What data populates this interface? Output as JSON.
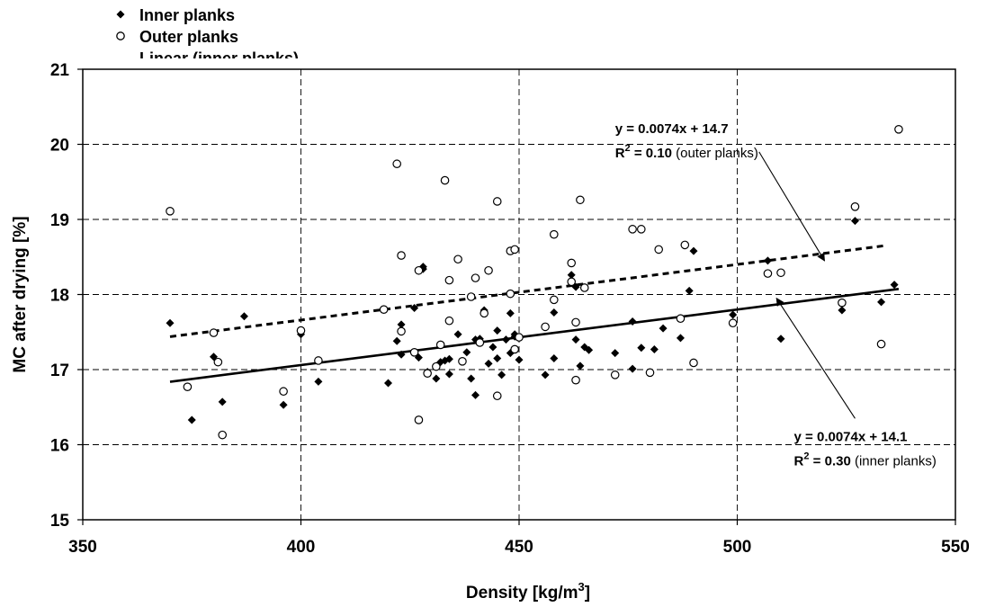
{
  "chart_data": {
    "type": "scatter",
    "title": "",
    "xlabel": {
      "text": "Density [kg/m",
      "sup": "3",
      "end": "]"
    },
    "ylabel": "MC after drying [%]",
    "xlim": [
      350,
      550
    ],
    "ylim": [
      15,
      21
    ],
    "xticks": [
      350,
      400,
      450,
      500,
      550
    ],
    "yticks": [
      15,
      16,
      17,
      18,
      19,
      20,
      21
    ],
    "grid": true,
    "legend_position": "top-left",
    "series": [
      {
        "name": "Inner planks",
        "marker": "diamond-filled",
        "points": [
          [
            370,
            17.62
          ],
          [
            375,
            16.33
          ],
          [
            380,
            17.17
          ],
          [
            382,
            16.57
          ],
          [
            387,
            17.71
          ],
          [
            396,
            16.53
          ],
          [
            400,
            17.47
          ],
          [
            404,
            16.84
          ],
          [
            420,
            16.82
          ],
          [
            422,
            17.38
          ],
          [
            423,
            17.2
          ],
          [
            423,
            17.6
          ],
          [
            426,
            17.82
          ],
          [
            427,
            17.16
          ],
          [
            428,
            18.37
          ],
          [
            428,
            18.34
          ],
          [
            429,
            16.97
          ],
          [
            431,
            16.88
          ],
          [
            432,
            17.1
          ],
          [
            433,
            17.12
          ],
          [
            434,
            16.94
          ],
          [
            434,
            17.14
          ],
          [
            436,
            17.47
          ],
          [
            438,
            17.23
          ],
          [
            439,
            16.88
          ],
          [
            440,
            17.4
          ],
          [
            440,
            16.66
          ],
          [
            441,
            17.41
          ],
          [
            442,
            17.79
          ],
          [
            443,
            17.08
          ],
          [
            444,
            17.3
          ],
          [
            445,
            17.52
          ],
          [
            445,
            17.15
          ],
          [
            446,
            16.93
          ],
          [
            447,
            17.4
          ],
          [
            448,
            17.75
          ],
          [
            448,
            17.22
          ],
          [
            449,
            17.47
          ],
          [
            449,
            17.44
          ],
          [
            450,
            17.13
          ],
          [
            456,
            16.93
          ],
          [
            458,
            17.76
          ],
          [
            458,
            17.15
          ],
          [
            462,
            18.26
          ],
          [
            463,
            18.1
          ],
          [
            463,
            17.4
          ],
          [
            464,
            17.05
          ],
          [
            465,
            17.3
          ],
          [
            466,
            17.26
          ],
          [
            472,
            17.22
          ],
          [
            476,
            17.64
          ],
          [
            476,
            17.01
          ],
          [
            478,
            17.29
          ],
          [
            481,
            17.27
          ],
          [
            483,
            17.55
          ],
          [
            487,
            17.42
          ],
          [
            489,
            18.05
          ],
          [
            490,
            18.58
          ],
          [
            499,
            17.73
          ],
          [
            507,
            18.45
          ],
          [
            510,
            17.41
          ],
          [
            524,
            17.79
          ],
          [
            527,
            18.98
          ],
          [
            533,
            17.9
          ],
          [
            536,
            18.13
          ]
        ],
        "trend": {
          "slope": 0.0074,
          "intercept": 14.1,
          "x_range": [
            370,
            537
          ],
          "style": "solid"
        }
      },
      {
        "name": "Outer planks",
        "marker": "circle-open",
        "points": [
          [
            370,
            19.11
          ],
          [
            374,
            16.77
          ],
          [
            380,
            17.49
          ],
          [
            381,
            17.1
          ],
          [
            382,
            16.13
          ],
          [
            396,
            16.71
          ],
          [
            400,
            17.52
          ],
          [
            404,
            17.12
          ],
          [
            419,
            17.8
          ],
          [
            422,
            19.74
          ],
          [
            423,
            18.52
          ],
          [
            423,
            17.51
          ],
          [
            426,
            17.23
          ],
          [
            427,
            18.32
          ],
          [
            427,
            16.33
          ],
          [
            429,
            16.95
          ],
          [
            431,
            17.04
          ],
          [
            432,
            17.33
          ],
          [
            433,
            19.52
          ],
          [
            434,
            17.65
          ],
          [
            434,
            18.19
          ],
          [
            436,
            18.47
          ],
          [
            437,
            17.11
          ],
          [
            439,
            17.97
          ],
          [
            440,
            18.22
          ],
          [
            441,
            17.36
          ],
          [
            442,
            17.75
          ],
          [
            443,
            18.32
          ],
          [
            445,
            16.65
          ],
          [
            445,
            19.24
          ],
          [
            448,
            18.58
          ],
          [
            448,
            18.01
          ],
          [
            449,
            18.6
          ],
          [
            449,
            17.27
          ],
          [
            450,
            17.43
          ],
          [
            456,
            17.57
          ],
          [
            458,
            17.93
          ],
          [
            458,
            18.8
          ],
          [
            462,
            18.42
          ],
          [
            462,
            18.17
          ],
          [
            463,
            16.86
          ],
          [
            463,
            17.63
          ],
          [
            464,
            19.26
          ],
          [
            465,
            18.09
          ],
          [
            472,
            16.93
          ],
          [
            476,
            18.87
          ],
          [
            478,
            18.87
          ],
          [
            480,
            16.96
          ],
          [
            482,
            18.6
          ],
          [
            487,
            17.68
          ],
          [
            488,
            18.66
          ],
          [
            490,
            17.09
          ],
          [
            499,
            17.62
          ],
          [
            507,
            18.28
          ],
          [
            510,
            18.29
          ],
          [
            524,
            17.89
          ],
          [
            527,
            19.17
          ],
          [
            533,
            17.34
          ],
          [
            537,
            20.2
          ]
        ],
        "trend": {
          "slope": 0.0074,
          "intercept": 14.7,
          "x_range": [
            370,
            534
          ],
          "style": "dashed"
        }
      }
    ],
    "legend_clipped_text": "Linear (inner planks)",
    "annotations": {
      "outer": {
        "equation": "y = 0.0074x + 14.7",
        "r2_label": "R",
        "r2_sup": "2",
        "r2_value": " = 0.10",
        "r2_suffix": " (outer planks)",
        "text_at": [
          472,
          20.15
        ],
        "arrow_from": [
          505,
          19.9
        ],
        "arrow_to": [
          520,
          18.45
        ]
      },
      "inner": {
        "equation": "y = 0.0074x + 14.1",
        "r2_label": "R",
        "r2_sup": "2",
        "r2_value": " = 0.30",
        "r2_suffix": " (inner planks)",
        "text_at": [
          513,
          16.05
        ],
        "arrow_from": [
          527,
          16.35
        ],
        "arrow_to": [
          509,
          17.95
        ]
      }
    }
  }
}
